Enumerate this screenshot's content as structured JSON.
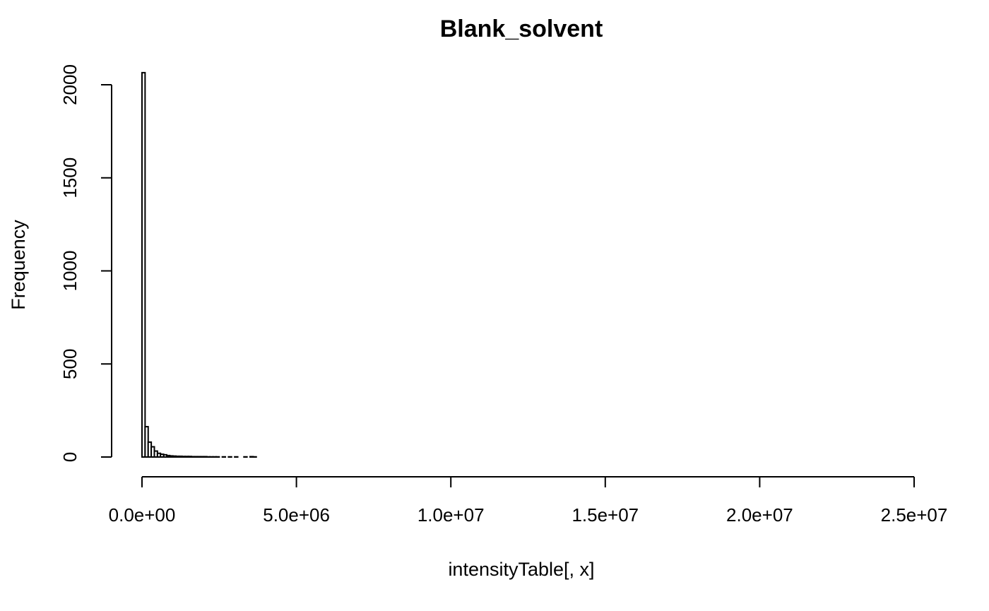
{
  "chart_data": {
    "type": "bar",
    "chart_kind": "histogram",
    "title": "Blank_solvent",
    "xlabel": "intensityTable[, x]",
    "ylabel": "Frequency",
    "bin_width": 100000,
    "x_range": [
      0,
      24600000
    ],
    "xlim": [
      0,
      25000000
    ],
    "ylim": [
      0,
      2000
    ],
    "x_ticks": [
      0,
      5000000,
      10000000,
      15000000,
      20000000,
      25000000
    ],
    "x_tick_labels": [
      "0.0e+00",
      "5.0e+06",
      "1.0e+07",
      "1.5e+07",
      "2.0e+07",
      "2.5e+07"
    ],
    "y_ticks": [
      0,
      500,
      1000,
      1500,
      2000
    ],
    "y_tick_labels": [
      "0",
      "500",
      "1000",
      "1500",
      "2000"
    ],
    "bins": [
      {
        "x0": 0,
        "x1": 100000,
        "count": 2065
      },
      {
        "x0": 100000,
        "x1": 200000,
        "count": 163
      },
      {
        "x0": 200000,
        "x1": 300000,
        "count": 80
      },
      {
        "x0": 300000,
        "x1": 400000,
        "count": 55
      },
      {
        "x0": 400000,
        "x1": 500000,
        "count": 32
      },
      {
        "x0": 500000,
        "x1": 600000,
        "count": 20
      },
      {
        "x0": 600000,
        "x1": 700000,
        "count": 15
      },
      {
        "x0": 700000,
        "x1": 800000,
        "count": 12
      },
      {
        "x0": 800000,
        "x1": 900000,
        "count": 8
      },
      {
        "x0": 900000,
        "x1": 1000000,
        "count": 6
      },
      {
        "x0": 1000000,
        "x1": 1100000,
        "count": 5
      },
      {
        "x0": 1100000,
        "x1": 1200000,
        "count": 4
      },
      {
        "x0": 1200000,
        "x1": 1300000,
        "count": 4
      },
      {
        "x0": 1300000,
        "x1": 1400000,
        "count": 3
      },
      {
        "x0": 1400000,
        "x1": 1500000,
        "count": 3
      },
      {
        "x0": 1500000,
        "x1": 1600000,
        "count": 3
      },
      {
        "x0": 1600000,
        "x1": 1700000,
        "count": 2
      },
      {
        "x0": 1700000,
        "x1": 1800000,
        "count": 2
      },
      {
        "x0": 1800000,
        "x1": 1900000,
        "count": 2
      },
      {
        "x0": 1900000,
        "x1": 2000000,
        "count": 2
      },
      {
        "x0": 2000000,
        "x1": 2100000,
        "count": 2
      },
      {
        "x0": 2100000,
        "x1": 2200000,
        "count": 1
      },
      {
        "x0": 2200000,
        "x1": 2300000,
        "count": 1
      },
      {
        "x0": 2300000,
        "x1": 2400000,
        "count": 1
      },
      {
        "x0": 2400000,
        "x1": 2500000,
        "count": 1
      },
      {
        "x0": 2600000,
        "x1": 2700000,
        "count": 1
      },
      {
        "x0": 2800000,
        "x1": 2900000,
        "count": 1
      },
      {
        "x0": 3000000,
        "x1": 3100000,
        "count": 1
      },
      {
        "x0": 3300000,
        "x1": 3400000,
        "count": 1
      },
      {
        "x0": 3500000,
        "x1": 3600000,
        "count": 2
      },
      {
        "x0": 3600000,
        "x1": 3700000,
        "count": 1
      }
    ]
  }
}
